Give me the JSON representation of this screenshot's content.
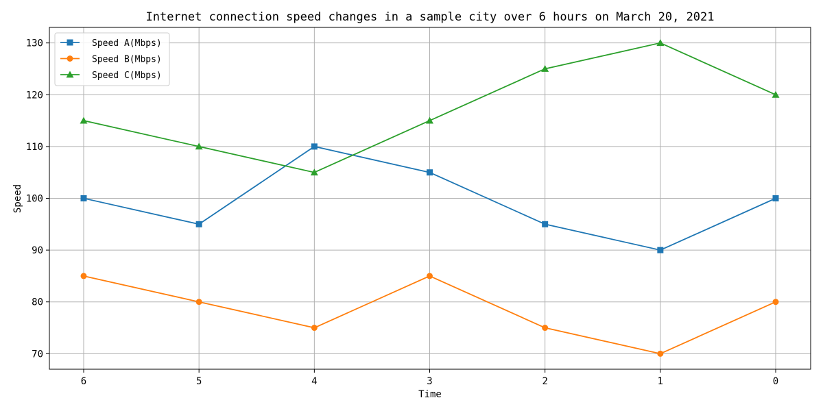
{
  "chart_data": {
    "type": "line",
    "title": "Internet connection speed changes in a sample city over 6 hours on March 20, 2021",
    "xlabel": "Time",
    "ylabel": "Speed",
    "categories": [
      "6",
      "5",
      "4",
      "3",
      "2",
      "1",
      "0"
    ],
    "ylim": [
      67,
      133
    ],
    "yticks": [
      70,
      80,
      90,
      100,
      110,
      120,
      130
    ],
    "grid": true,
    "legend_position": "top-left",
    "series": [
      {
        "name": "Speed A(Mbps)",
        "color": "#1f77b4",
        "marker": "square",
        "values": [
          100,
          95,
          110,
          105,
          95,
          90,
          100
        ]
      },
      {
        "name": "Speed B(Mbps)",
        "color": "#ff7f0e",
        "marker": "circle",
        "values": [
          85,
          80,
          75,
          85,
          75,
          70,
          80
        ]
      },
      {
        "name": "Speed C(Mbps)",
        "color": "#2ca02c",
        "marker": "triangle",
        "values": [
          115,
          110,
          105,
          115,
          125,
          130,
          120
        ]
      }
    ]
  }
}
